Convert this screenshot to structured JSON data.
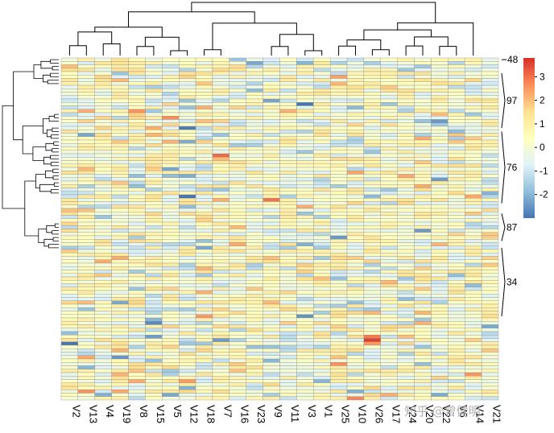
{
  "chart_data": {
    "type": "heatmap",
    "title": "",
    "xlabel": "",
    "ylabel": "",
    "n_rows": 100,
    "columns": [
      "V2",
      "V13",
      "V4",
      "V19",
      "V8",
      "V15",
      "V5",
      "V12",
      "V18",
      "V7",
      "V16",
      "V23",
      "V9",
      "V11",
      "V3",
      "V1",
      "V25",
      "V10",
      "V26",
      "V17",
      "V24",
      "V20",
      "V22",
      "V6",
      "V14",
      "V21"
    ],
    "row_annotations": [
      {
        "label": "48",
        "rows": [
          0,
          0
        ]
      },
      {
        "label": "97",
        "rows": [
          4,
          20
        ]
      },
      {
        "label": "76",
        "rows": [
          21,
          42
        ]
      },
      {
        "label": "87",
        "rows": [
          45,
          53
        ]
      },
      {
        "label": "34",
        "rows": [
          55,
          75
        ]
      }
    ],
    "color_scale": {
      "min": -3,
      "max": 3.8,
      "ticks": [
        3,
        2,
        1,
        0,
        -1,
        -2
      ],
      "colors": [
        "#4575b4",
        "#91bfdb",
        "#e0f3f8",
        "#ffffbf",
        "#fee090",
        "#fc8d59",
        "#d73027"
      ]
    },
    "notable_cells": [
      {
        "row": 82,
        "column": "V26",
        "value": 3.6
      },
      {
        "row": 81,
        "column": "V26",
        "value": 2.9
      },
      {
        "row": 1,
        "column": "V3",
        "value": -2.0
      },
      {
        "row": 12,
        "column": "V9",
        "value": -2.3
      }
    ],
    "column_dendrogram": "present",
    "row_dendrogram": "present"
  },
  "watermark": "知乎 @曾健明"
}
